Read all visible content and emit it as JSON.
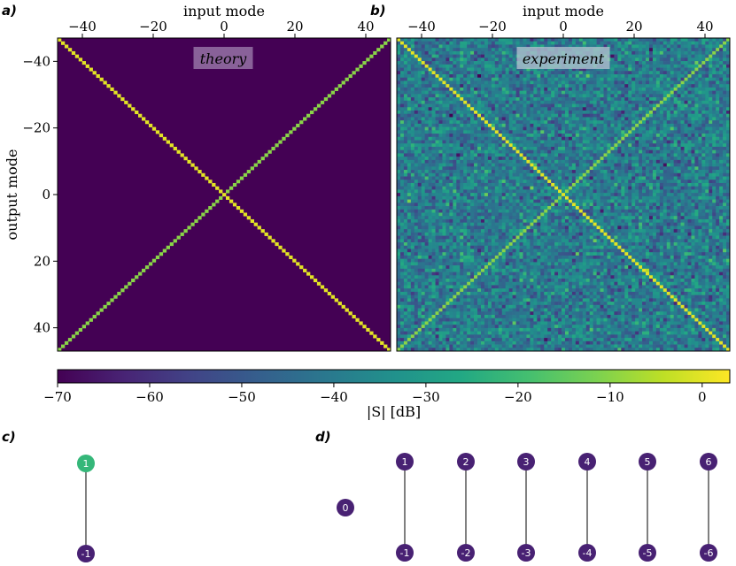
{
  "panel_letters": {
    "a": "a)",
    "b": "b)",
    "c": "c)",
    "d": "d)"
  },
  "chart_data": [
    {
      "type": "heatmap",
      "panel": "a",
      "annotation": "theory",
      "xlabel": "input mode",
      "ylabel": "output mode",
      "xlim": [
        -47,
        47
      ],
      "ylim": [
        -47,
        47
      ],
      "x_ticks": [
        -40,
        -20,
        0,
        20,
        40
      ],
      "y_ticks": [
        -40,
        -20,
        0,
        20,
        40
      ],
      "grid_size": 95,
      "background_db": -70,
      "main_diagonal_db": 0,
      "anti_diagonal_db": -10,
      "colormap": "viridis"
    },
    {
      "type": "heatmap",
      "panel": "b",
      "annotation": "experiment",
      "xlabel": "input mode",
      "xlim": [
        -47,
        47
      ],
      "ylim": [
        -47,
        47
      ],
      "x_ticks": [
        -40,
        -20,
        0,
        20,
        40
      ],
      "grid_size": 95,
      "background_db_mean": -40,
      "background_db_spread": 8,
      "main_diagonal_db": 0,
      "anti_diagonal_db": -10,
      "colormap": "viridis"
    }
  ],
  "colorbar": {
    "label": "|S| [dB]",
    "range": [
      -70,
      3
    ],
    "ticks": [
      -70,
      -60,
      -50,
      -40,
      -30,
      -20,
      -10,
      0
    ]
  },
  "graph_c": {
    "nodes": [
      {
        "label": "1",
        "color": "#35b779"
      },
      {
        "label": "-1",
        "color": "#482173"
      }
    ],
    "edges": [
      [
        "1",
        "-1"
      ]
    ]
  },
  "graph_d": {
    "center_node": {
      "label": "0",
      "color": "#482173"
    },
    "top_nodes": [
      "1",
      "2",
      "3",
      "4",
      "5",
      "6"
    ],
    "bottom_nodes": [
      "-1",
      "-2",
      "-3",
      "-4",
      "-5",
      "-6"
    ],
    "node_color": "#482173"
  }
}
